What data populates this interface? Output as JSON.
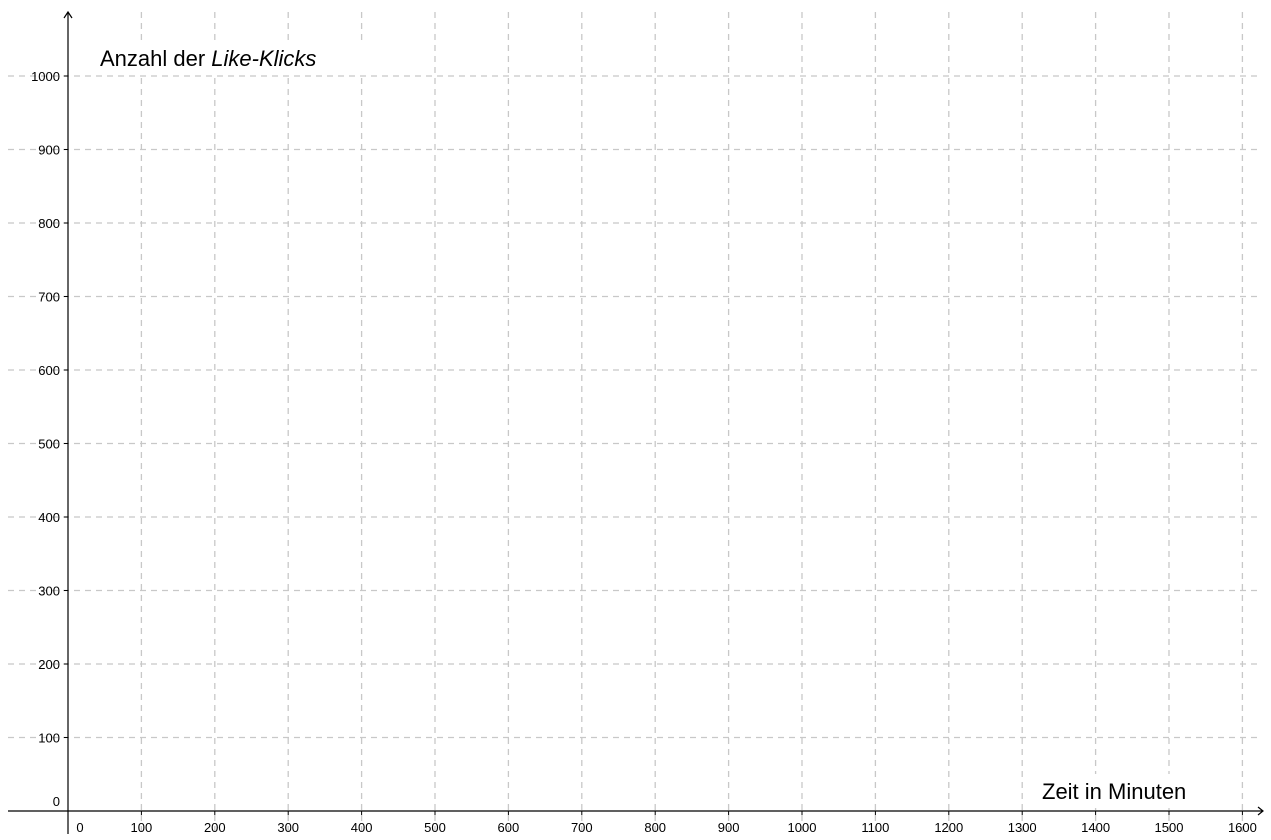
{
  "chart_data": {
    "type": "line",
    "x": [],
    "series": [],
    "xlabel": "Zeit in Minuten",
    "ylabel_parts": [
      "Anzahl der ",
      "Like-Klicks"
    ],
    "xlim": [
      0,
      1600
    ],
    "ylim": [
      0,
      1000
    ],
    "xtick_step": 100,
    "ytick_step": 100,
    "x_ticks": [
      "0",
      "100",
      "200",
      "300",
      "400",
      "500",
      "600",
      "700",
      "800",
      "900",
      "1000",
      "1100",
      "1200",
      "1300",
      "1400",
      "1500",
      "1600"
    ],
    "y_ticks": [
      "0",
      "100",
      "200",
      "300",
      "400",
      "500",
      "600",
      "700",
      "800",
      "900",
      "1000"
    ],
    "grid": true,
    "grid_style": "dashed",
    "colors": {
      "grid": "#c8c8c8",
      "axis": "#000000"
    }
  }
}
